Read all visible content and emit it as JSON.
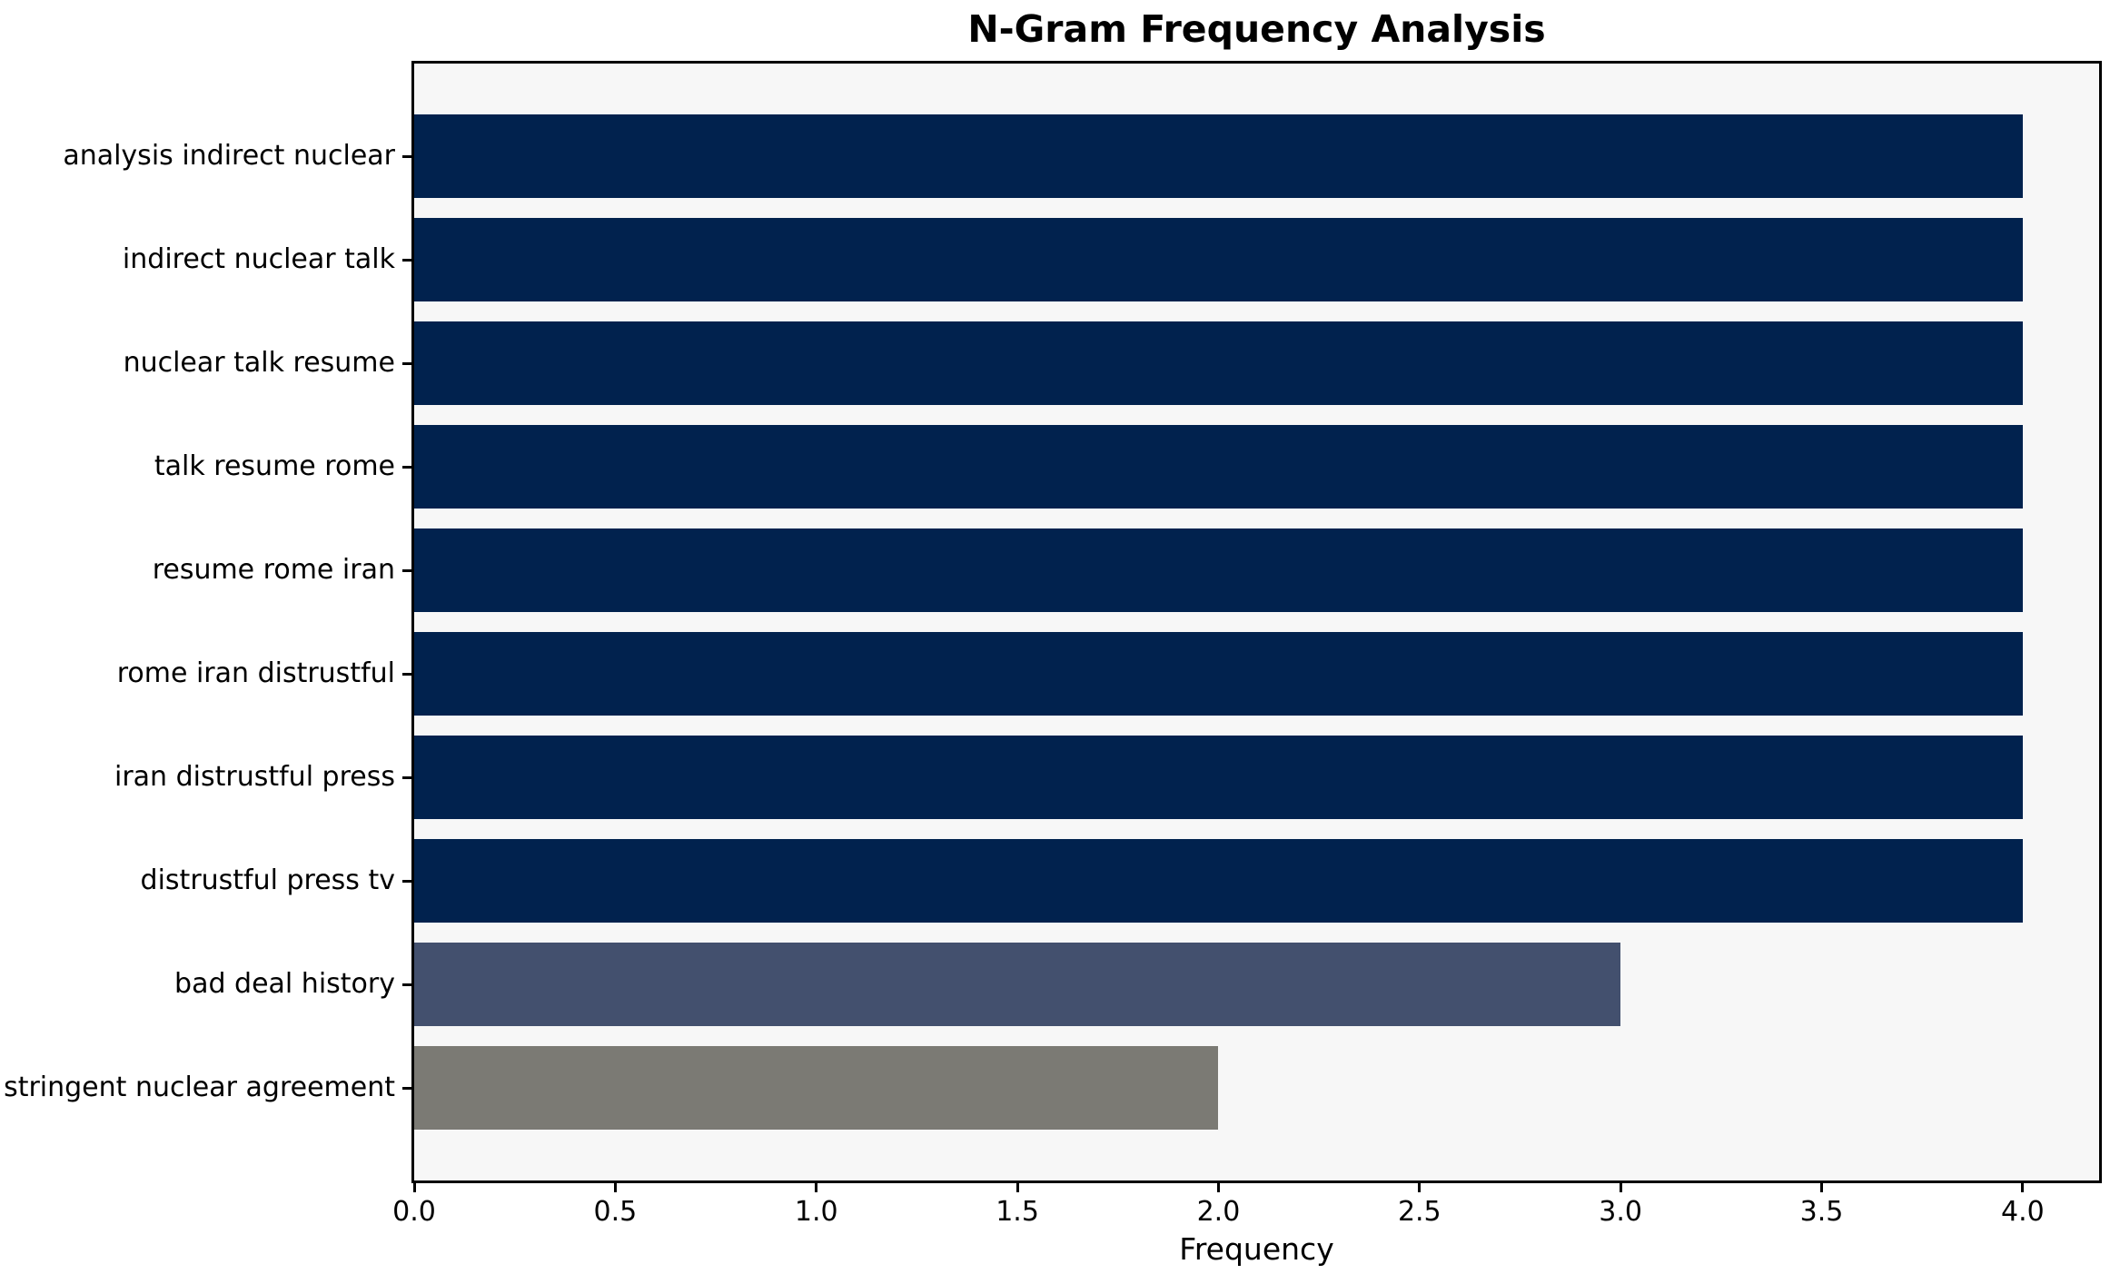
{
  "chart_data": {
    "type": "bar",
    "orientation": "horizontal",
    "title": "N-Gram Frequency Analysis",
    "xlabel": "Frequency",
    "ylabel": "",
    "categories": [
      "analysis indirect nuclear",
      "indirect nuclear talk",
      "nuclear talk resume",
      "talk resume rome",
      "resume rome iran",
      "rome iran distrustful",
      "iran distrustful press",
      "distrustful press tv",
      "bad deal history",
      "stringent nuclear agreement"
    ],
    "values": [
      4,
      4,
      4,
      4,
      4,
      4,
      4,
      4,
      3,
      2
    ],
    "bar_colors": [
      "#01224e",
      "#01224e",
      "#01224e",
      "#01224e",
      "#01224e",
      "#01224e",
      "#01224e",
      "#01224e",
      "#43506e",
      "#7b7a74"
    ],
    "xlim": [
      0,
      4.19
    ],
    "xticks": [
      0,
      0.5,
      1,
      1.5,
      2,
      2.5,
      3,
      3.5,
      4
    ],
    "xtick_labels": [
      "0.0",
      "0.5",
      "1.0",
      "1.5",
      "2.0",
      "2.5",
      "3.0",
      "3.5",
      "4.0"
    ],
    "grid": false,
    "legend_position": "none",
    "colors": {
      "plot_background": "#f7f7f7",
      "figure_background": "#ffffff",
      "axis": "#000000",
      "text": "#000000"
    }
  }
}
